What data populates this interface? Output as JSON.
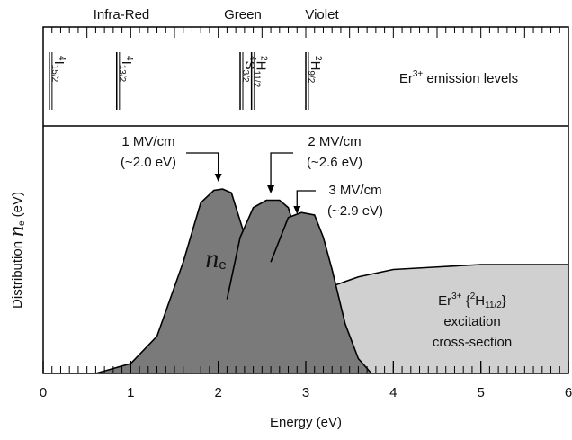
{
  "chart_data": {
    "type": "area",
    "xlabel": "Energy (eV)",
    "ylabel": {
      "pre": "Distribution",
      "var": "n",
      "sub": "e",
      "post": "(eV)"
    },
    "xlim": [
      0,
      6
    ],
    "xticks": [
      0,
      1,
      2,
      3,
      4,
      5,
      6
    ],
    "xminor": 0.1,
    "ylim": [
      0,
      1
    ],
    "regions": [
      "Infra-Red",
      "Green",
      "Violet"
    ],
    "levels_title": {
      "base": "Er",
      "sup": "3+",
      "rest": " emission levels"
    },
    "levels": [
      {
        "sup": "4",
        "base": "I",
        "sub": "15/2",
        "energy": 0.07
      },
      {
        "sup": "4",
        "base": "I",
        "sub": "13/2",
        "energy": 0.84
      },
      {
        "sup": "4",
        "base": "S",
        "sub": "3/2",
        "energy": 2.25
      },
      {
        "sup": "2",
        "base": "H",
        "sub": "11/2",
        "energy": 2.38
      },
      {
        "sup": "2",
        "base": "H",
        "sub": "9/2",
        "energy": 3.0
      }
    ],
    "series": [
      {
        "name": "cross-section",
        "color": "#d0d0d0",
        "x": [
          2.3,
          2.4,
          2.5,
          2.65,
          2.8,
          3.0,
          3.2,
          3.6,
          4.0,
          4.5,
          5.0,
          6.0
        ],
        "values": [
          0,
          0.09,
          0.15,
          0.21,
          0.26,
          0.31,
          0.34,
          0.39,
          0.42,
          0.43,
          0.44,
          0.44
        ]
      },
      {
        "name": "1 MV/cm",
        "color": "#7a7a7a",
        "x": [
          0.6,
          1.0,
          1.3,
          1.6,
          1.8,
          1.95,
          2.05,
          2.15,
          2.3,
          2.5,
          2.7,
          2.85
        ],
        "values": [
          0,
          0.04,
          0.15,
          0.45,
          0.69,
          0.74,
          0.745,
          0.73,
          0.56,
          0.31,
          0.11,
          0
        ]
      },
      {
        "name": "2 MV/cm",
        "color": "#7a7a7a",
        "x": [
          2.1,
          2.25,
          2.4,
          2.55,
          2.7,
          2.8,
          2.9,
          3.0,
          3.2,
          3.4,
          3.45
        ],
        "values": [
          0.3,
          0.55,
          0.67,
          0.7,
          0.7,
          0.67,
          0.55,
          0.4,
          0.18,
          0.03,
          0
        ]
      },
      {
        "name": "3 MV/cm",
        "color": "#7a7a7a",
        "x": [
          2.6,
          2.8,
          2.95,
          3.1,
          3.2,
          3.3,
          3.45,
          3.6,
          3.75
        ],
        "values": [
          0.45,
          0.63,
          0.65,
          0.64,
          0.55,
          0.42,
          0.2,
          0.06,
          0
        ]
      }
    ],
    "annotations": [
      {
        "lines": [
          "1 MV/cm",
          "(~2.0 eV)"
        ],
        "x": 2.0
      },
      {
        "lines": [
          "2 MV/cm",
          "(~2.6 eV)"
        ],
        "x": 2.6
      },
      {
        "lines": [
          "3 MV/cm",
          "(~2.9 eV)"
        ],
        "x": 2.9
      }
    ],
    "curve_label": {
      "var": "n",
      "sub": "e"
    },
    "cross_label": {
      "base": "Er",
      "sup": "3+",
      "mid": " {",
      "sup2": "2",
      "h": "H",
      "sub": "11/2",
      "end": "}",
      "line2": "excitation",
      "line3": "cross-section"
    }
  }
}
